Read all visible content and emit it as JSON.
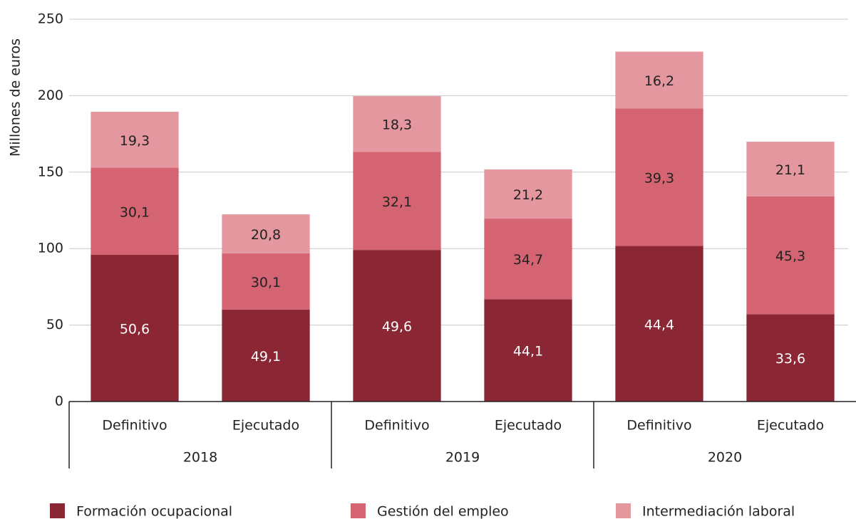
{
  "chart_data": {
    "type": "stacked_bar",
    "y_label": "Millones de euros",
    "categories": [
      "Definitivo",
      "Ejecutado",
      "Definitivo",
      "Ejecutado",
      "Definitivo",
      "Ejecutado"
    ],
    "groups": [
      "2018",
      "2019",
      "2020"
    ],
    "series": [
      {
        "name": "Formación ocupacional",
        "color": "#8b2635",
        "values": [
          95.9,
          60.1,
          99.1,
          66.9,
          101.7,
          57.1
        ],
        "value_labels": [
          "50,6",
          "49,1",
          "49,6",
          "44,1",
          "44,4",
          "33,6"
        ]
      },
      {
        "name": "Gestión del empleo",
        "color": "#d46472",
        "values": [
          57.0,
          36.8,
          64.1,
          52.7,
          90.0,
          77.0
        ],
        "value_labels": [
          "30,1",
          "30,1",
          "32,1",
          "34,7",
          "39,3",
          "45,3"
        ]
      },
      {
        "name": "Intermediación laboral",
        "color": "#e597a0",
        "values": [
          36.6,
          25.5,
          36.5,
          32.2,
          37.1,
          35.8
        ],
        "value_labels": [
          "19,3",
          "20,8",
          "18,3",
          "21,2",
          "16,2",
          "21,1"
        ]
      }
    ],
    "ylim": [
      0,
      250
    ],
    "yticks": [
      0,
      50,
      100,
      150,
      200,
      250
    ],
    "grid": true
  }
}
